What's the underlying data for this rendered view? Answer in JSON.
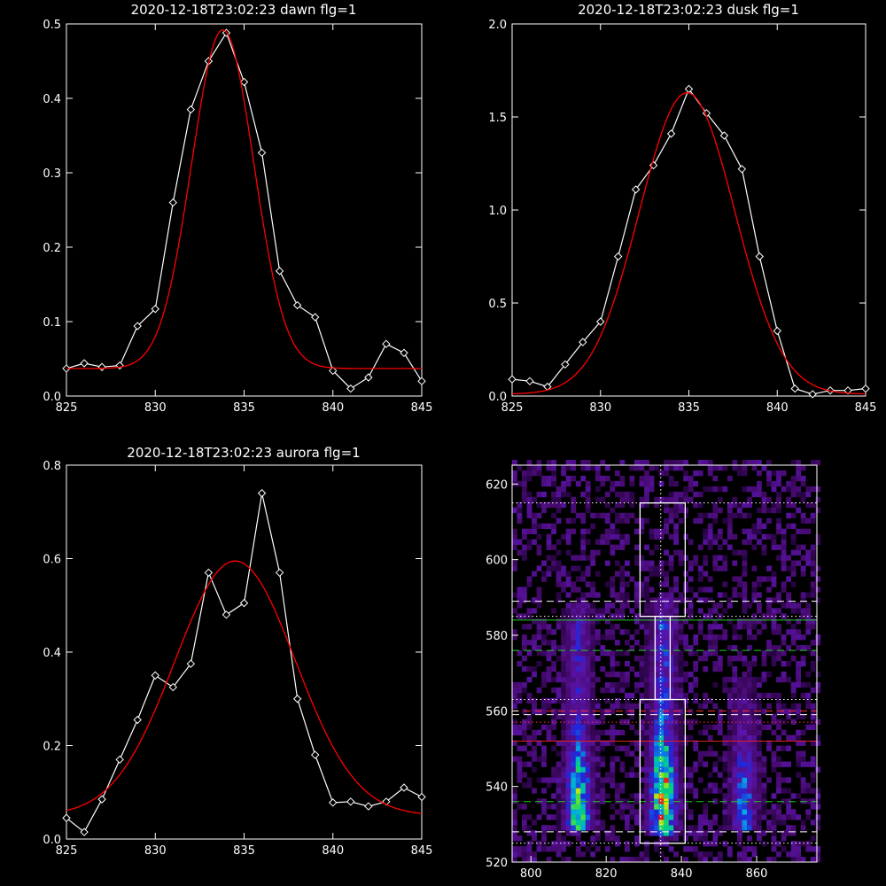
{
  "chart_data": [
    {
      "type": "line",
      "title": "2020-12-18T23:02:23 dawn flg=1",
      "xlim": [
        825,
        845
      ],
      "ylim": [
        0,
        0.5
      ],
      "xticks": [
        825,
        830,
        835,
        840,
        845
      ],
      "yticks": [
        0.0,
        0.1,
        0.2,
        0.3,
        0.4,
        0.5
      ],
      "ytick_labels": [
        "0.0",
        "0.1",
        "0.2",
        "0.3",
        "0.4",
        "0.5"
      ],
      "series": [
        {
          "color": "#ffffff",
          "marker": "diamond",
          "x": [
            825,
            826,
            827,
            828,
            829,
            830,
            831,
            832,
            833,
            834,
            835,
            836,
            837,
            838,
            839,
            840,
            841,
            842,
            843,
            844,
            845
          ],
          "y": [
            0.037,
            0.044,
            0.039,
            0.041,
            0.094,
            0.117,
            0.26,
            0.385,
            0.45,
            0.488,
            0.422,
            0.327,
            0.168,
            0.122,
            0.106,
            0.034,
            0.01,
            0.025,
            0.07,
            0.058,
            0.02
          ]
        },
        {
          "color": "#ff0000",
          "fit": "gaussian",
          "amplitude": 0.455,
          "center": 833.8,
          "sigma": 1.75,
          "baseline": 0.037
        }
      ]
    },
    {
      "type": "line",
      "title": "2020-12-18T23:02:23 dusk flg=1",
      "xlim": [
        825,
        845
      ],
      "ylim": [
        0,
        2.0
      ],
      "xticks": [
        825,
        830,
        835,
        840,
        845
      ],
      "yticks": [
        0.0,
        0.5,
        1.0,
        1.5,
        2.0
      ],
      "ytick_labels": [
        "0.0",
        "0.5",
        "1.0",
        "1.5",
        "2.0"
      ],
      "series": [
        {
          "color": "#ffffff",
          "marker": "diamond",
          "x": [
            825,
            826,
            827,
            828,
            829,
            830,
            831,
            832,
            833,
            834,
            835,
            836,
            837,
            838,
            839,
            840,
            841,
            842,
            843,
            844,
            845
          ],
          "y": [
            0.09,
            0.08,
            0.05,
            0.17,
            0.29,
            0.4,
            0.75,
            1.11,
            1.24,
            1.41,
            1.65,
            1.52,
            1.4,
            1.22,
            0.75,
            0.35,
            0.04,
            0.01,
            0.03,
            0.03,
            0.04
          ]
        },
        {
          "color": "#ff0000",
          "fit": "gaussian",
          "amplitude": 1.62,
          "center": 834.9,
          "sigma": 2.7,
          "baseline": 0.01
        }
      ]
    },
    {
      "type": "line",
      "title": "2020-12-18T23:02:23 aurora flg=1",
      "xlim": [
        825,
        845
      ],
      "ylim": [
        0,
        0.8
      ],
      "xticks": [
        825,
        830,
        835,
        840,
        845
      ],
      "yticks": [
        0.0,
        0.2,
        0.4,
        0.6,
        0.8
      ],
      "ytick_labels": [
        "0.0",
        "0.2",
        "0.4",
        "0.6",
        "0.8"
      ],
      "series": [
        {
          "color": "#ffffff",
          "marker": "diamond",
          "x": [
            825,
            826,
            827,
            828,
            829,
            830,
            831,
            832,
            833,
            834,
            835,
            836,
            837,
            838,
            839,
            840,
            841,
            842,
            843,
            844,
            845
          ],
          "y": [
            0.045,
            0.015,
            0.085,
            0.17,
            0.255,
            0.35,
            0.325,
            0.375,
            0.57,
            0.48,
            0.505,
            0.74,
            0.57,
            0.3,
            0.18,
            0.078,
            0.08,
            0.07,
            0.08,
            0.11,
            0.09
          ]
        },
        {
          "color": "#ff0000",
          "fit": "gaussian",
          "amplitude": 0.545,
          "center": 834.5,
          "sigma": 3.4,
          "baseline": 0.05
        }
      ]
    },
    {
      "type": "heatmap",
      "colormap": "rainbow",
      "xlim": [
        795,
        876
      ],
      "ylim": [
        520,
        625
      ],
      "xticks": [
        800,
        820,
        840,
        860
      ],
      "yticks": [
        520,
        540,
        560,
        580,
        600,
        620
      ],
      "bands": [
        {
          "x": 812,
          "y_min": 527,
          "y_max": 588,
          "peak_y": 534,
          "strength": 0.8
        },
        {
          "x": 834.5,
          "y_min": 526,
          "y_max": 589,
          "peak_y": 536,
          "strength": 1.0
        },
        {
          "x": 856,
          "y_min": 527,
          "y_max": 568,
          "peak_y": 535,
          "strength": 0.55
        }
      ],
      "boxes": [
        {
          "x": [
            829,
            841
          ],
          "y": [
            585,
            615
          ]
        },
        {
          "x": [
            829,
            841
          ],
          "y": [
            525,
            563
          ]
        },
        {
          "x": [
            833,
            837
          ],
          "y": [
            563,
            585
          ]
        }
      ],
      "vertical_lines": [
        {
          "x": 834.5,
          "style": "dotted",
          "color": "#ffffff"
        }
      ],
      "horizontal_lines": [
        {
          "y": 615,
          "style": "dotted",
          "color": "#ffffff"
        },
        {
          "y": 589,
          "style": "dashed",
          "color": "#ffffff"
        },
        {
          "y": 585,
          "style": "dotted",
          "color": "#ffffff"
        },
        {
          "y": 584,
          "style": "solid",
          "color": "#22cc22"
        },
        {
          "y": 576,
          "style": "dashed",
          "color": "#22cc22"
        },
        {
          "y": 563,
          "style": "dotted",
          "color": "#ffffff"
        },
        {
          "y": 560,
          "style": "dashed",
          "color": "#ff3030"
        },
        {
          "y": 559,
          "style": "dashed",
          "color": "#ffffff"
        },
        {
          "y": 557,
          "style": "dotted",
          "color": "#ff3030"
        },
        {
          "y": 552,
          "style": "solid",
          "color": "#dd2020"
        },
        {
          "y": 536,
          "style": "dashed",
          "color": "#22cc22"
        },
        {
          "y": 528,
          "style": "dashed",
          "color": "#ffffff"
        },
        {
          "y": 525,
          "style": "dotted",
          "color": "#ffffff"
        }
      ]
    }
  ]
}
